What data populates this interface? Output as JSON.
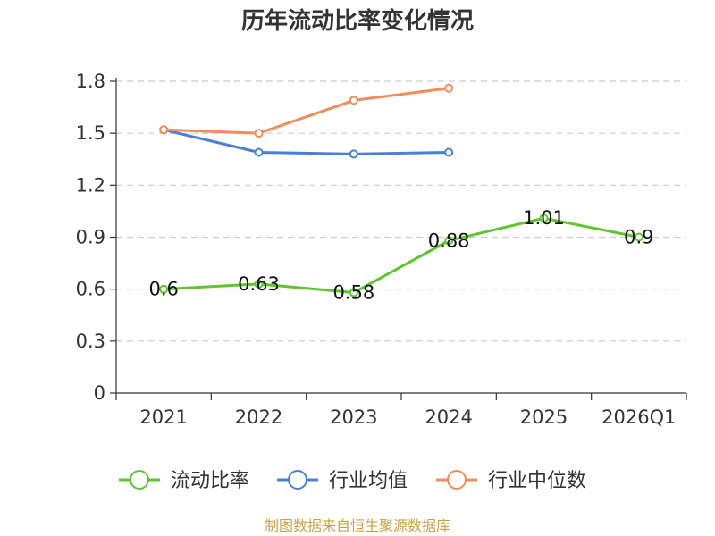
{
  "chart_data": {
    "type": "line",
    "title": "历年流动比率变化情况",
    "categories": [
      "2021",
      "2022",
      "2023",
      "2024",
      "2025",
      "2026Q1"
    ],
    "y_ticks": [
      "0",
      "0.3",
      "0.6",
      "0.9",
      "1.2",
      "1.5",
      "1.8"
    ],
    "ylim": [
      0,
      1.8
    ],
    "grid": true,
    "legend_position": "bottom",
    "series": [
      {
        "name": "流动比率",
        "color": "#5fc52e",
        "values": [
          0.6,
          0.63,
          0.58,
          0.88,
          1.01,
          0.9
        ],
        "labels": [
          "0.6",
          "0.63",
          "0.58",
          "0.88",
          "1.01",
          "0.9"
        ]
      },
      {
        "name": "行业均值",
        "color": "#4a7fd9",
        "values": [
          1.52,
          1.39,
          1.38,
          1.39,
          null,
          null
        ]
      },
      {
        "name": "行业中位数",
        "color": "#f28c5a",
        "values": [
          1.52,
          1.5,
          1.69,
          1.76,
          null,
          null
        ]
      }
    ],
    "source": "制图数据来自恒生聚源数据库"
  }
}
